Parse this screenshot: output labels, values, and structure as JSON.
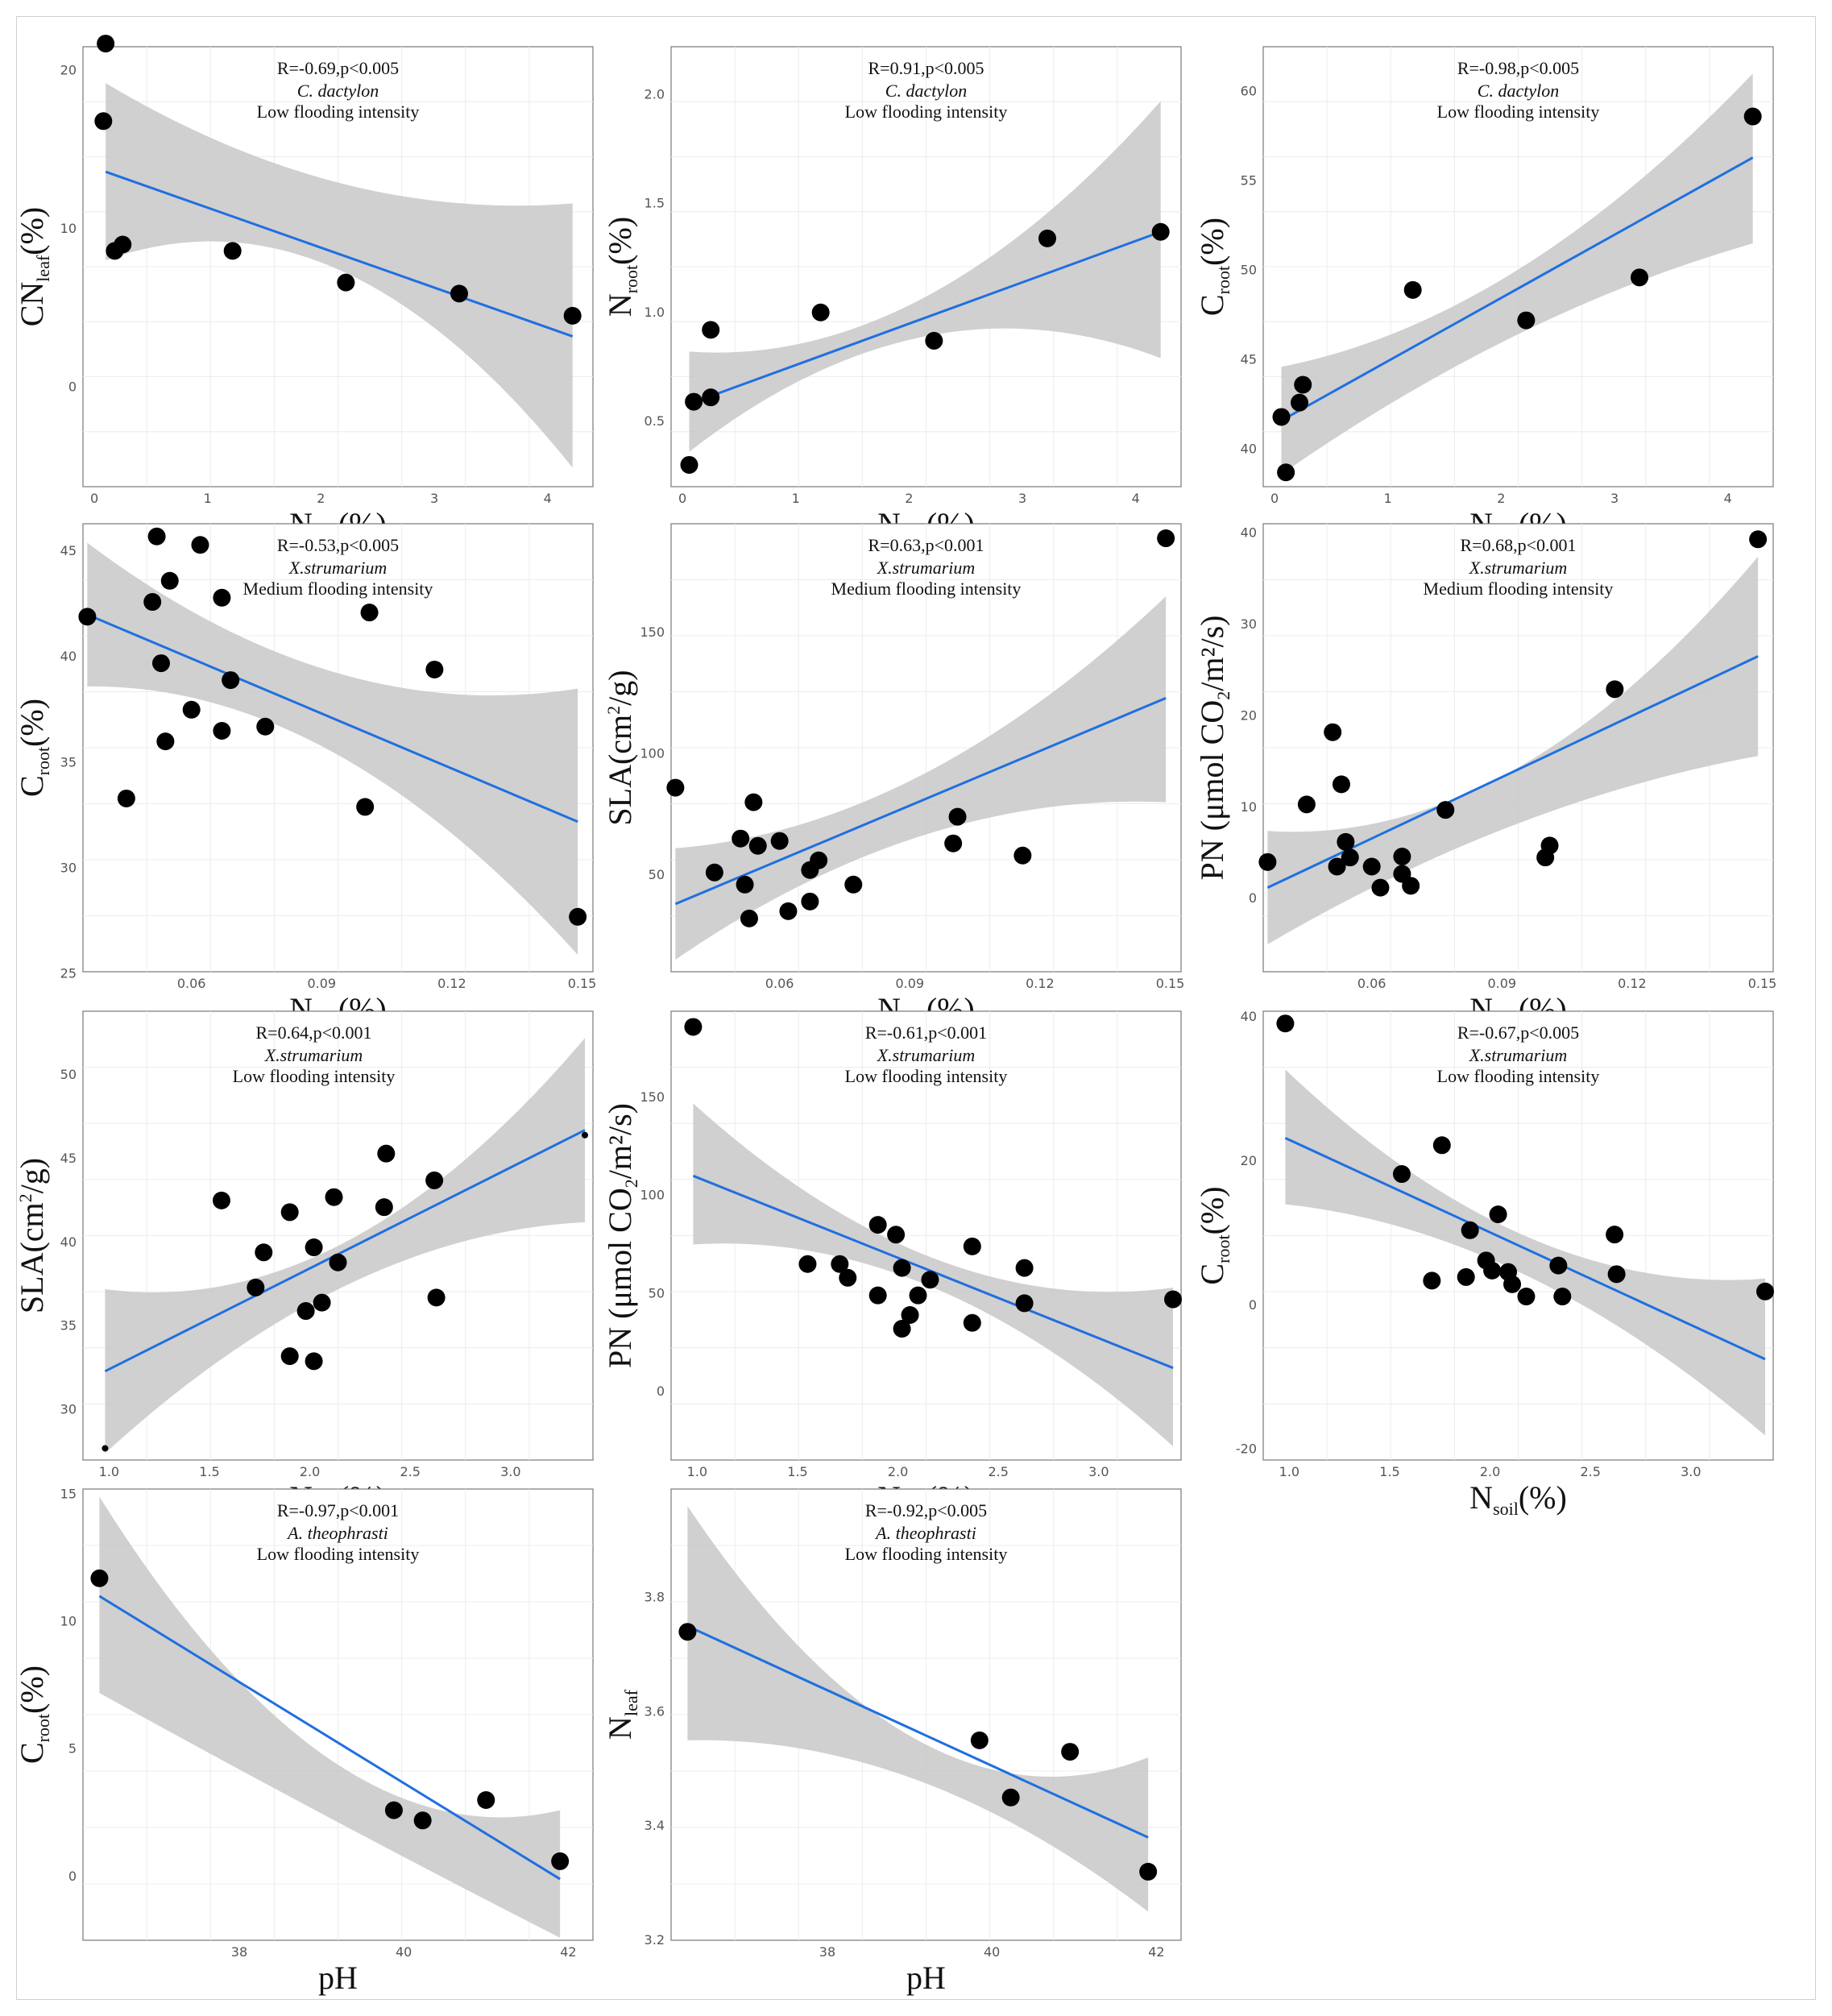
{
  "colors": {
    "line": "#1f6fe0",
    "band": "#c8c8c8",
    "points": "#000000",
    "grid": "#ececec"
  },
  "chart_data": [
    {
      "id": "p1",
      "type": "scatter",
      "ylabel": "CN",
      "ylabel_sub": "leaf",
      "ylabel_unit": "(%)",
      "xlabel": "N",
      "xlabel_sub": "soil",
      "xlabel_unit": "(%)",
      "stat": "R=-0.69,p<0.005",
      "species": "C. dactylon",
      "intensity": "Low flooding intensity",
      "xlim": [
        -0.1,
        4.4
      ],
      "ylim": [
        -6.3,
        21.5
      ],
      "xticks": [
        "0",
        "1",
        "2",
        "3",
        "4"
      ],
      "yticks": [
        "0",
        "10",
        "20"
      ],
      "x": [
        0.1,
        0.08,
        0.18,
        0.25,
        1.22,
        2.22,
        3.22,
        4.22
      ],
      "y": [
        21.7,
        16.8,
        8.6,
        9.0,
        8.6,
        6.6,
        5.9,
        4.5
      ],
      "fit": {
        "x0": 0.1,
        "y0": 13.6,
        "x1": 4.22,
        "y1": 3.2
      },
      "band": {
        "upper0": 19.2,
        "upperMid": 12.9,
        "upper1": 11.6,
        "lower0": 8.0,
        "lowerMid": 7.4,
        "lower1": -5.1
      }
    },
    {
      "id": "p2",
      "type": "scatter",
      "ylabel": "N",
      "ylabel_sub": "root",
      "ylabel_unit": "(%)",
      "xlabel": "N",
      "xlabel_sub": "soil",
      "xlabel_unit": "(%)",
      "stat": "R=0.91,p<0.005",
      "species": "C. dactylon",
      "intensity": "Low flooding intensity",
      "xlim": [
        -0.1,
        4.4
      ],
      "ylim": [
        0.2,
        2.22
      ],
      "xticks": [
        "0",
        "1",
        "2",
        "3",
        "4"
      ],
      "yticks": [
        "0.5",
        "1.0",
        "1.5",
        "2.0"
      ],
      "x": [
        0.06,
        0.1,
        0.25,
        0.25,
        1.22,
        2.22,
        3.22,
        4.22
      ],
      "y": [
        0.3,
        0.59,
        0.61,
        0.92,
        1.0,
        0.87,
        1.34,
        1.37
      ],
      "fit": {
        "x0": 0.06,
        "y0": 0.58,
        "x1": 4.22,
        "y1": 1.37
      },
      "band": {
        "upper0": 0.82,
        "upperMid": 1.07,
        "upper1": 1.97,
        "lower0": 0.36,
        "lowerMid": 0.89,
        "lower1": 0.79
      }
    },
    {
      "id": "p3",
      "type": "scatter",
      "ylabel": "C",
      "ylabel_sub": "root",
      "ylabel_unit": "(%)",
      "xlabel": "N",
      "xlabel_sub": "soil",
      "xlabel_unit": "(%)",
      "stat": "R=-0.98,p<0.005",
      "species": "C. dactylon",
      "intensity": "Low flooding intensity",
      "xlim": [
        -0.1,
        4.4
      ],
      "ylim": [
        37.9,
        62.5
      ],
      "xticks": [
        "0",
        "1",
        "2",
        "3",
        "4"
      ],
      "yticks": [
        "40",
        "45",
        "50",
        "55",
        "60"
      ],
      "x": [
        0.06,
        0.1,
        0.22,
        0.25,
        1.22,
        2.22,
        3.22,
        4.22
      ],
      "y": [
        41.8,
        38.7,
        42.6,
        43.6,
        48.9,
        47.2,
        49.6,
        58.6
      ],
      "fit": {
        "x0": 0.06,
        "y0": 41.6,
        "x1": 4.22,
        "y1": 56.3
      },
      "band": {
        "upper0": 44.6,
        "upperMid": 50.0,
        "upper1": 61.0,
        "lower0": 38.6,
        "lowerMid": 46.4,
        "lower1": 51.5
      }
    },
    {
      "id": "p4",
      "type": "scatter",
      "ylabel": "C",
      "ylabel_sub": "root",
      "ylabel_unit": "(%)",
      "xlabel": "N",
      "xlabel_sub": "soil",
      "xlabel_unit": "(%)",
      "stat": "R=-0.53,p<0.005",
      "species": "X.strumarium",
      "intensity": "Medium flooding intensity",
      "xlim": [
        0.035,
        0.1525
      ],
      "ylim": [
        25.1,
        46.3
      ],
      "xticks": [
        "0.06",
        "0.09",
        "0.12",
        "0.15"
      ],
      "yticks": [
        "25",
        "30",
        "35",
        "40",
        "45"
      ],
      "x": [
        0.036,
        0.045,
        0.051,
        0.052,
        0.053,
        0.054,
        0.055,
        0.06,
        0.062,
        0.067,
        0.067,
        0.069,
        0.077,
        0.1,
        0.101,
        0.116,
        0.149
      ],
      "y": [
        41.9,
        33.3,
        42.6,
        45.7,
        39.7,
        36.0,
        43.6,
        37.5,
        45.3,
        36.5,
        42.8,
        38.9,
        36.7,
        32.9,
        42.1,
        39.4,
        27.7
      ],
      "fit": {
        "x0": 0.036,
        "y0": 42.0,
        "x1": 0.149,
        "y1": 32.2
      },
      "band": {
        "upper0": 45.4,
        "upperMid": 39.3,
        "upper1": 38.5,
        "lower0": 38.6,
        "lowerMid": 35.5,
        "lower1": 25.9
      }
    },
    {
      "id": "p5",
      "type": "scatter",
      "ylabel": "SLA(cm",
      "ylabel_sup": "2",
      "ylabel_unit": "/g)",
      "xlabel": "N",
      "xlabel_sub": "soil",
      "xlabel_unit": "(%)",
      "stat": "R=0.63,p<0.001",
      "species": "X.strumarium",
      "intensity": "Medium flooding intensity",
      "xlim": [
        0.035,
        0.1525
      ],
      "ylim": [
        10,
        195
      ],
      "xticks": [
        "0.06",
        "0.09",
        "0.12",
        "0.15"
      ],
      "yticks": [
        "50",
        "100",
        "150"
      ],
      "x": [
        0.036,
        0.045,
        0.051,
        0.052,
        0.053,
        0.054,
        0.055,
        0.06,
        0.062,
        0.067,
        0.067,
        0.069,
        0.077,
        0.1,
        0.101,
        0.116,
        0.149
      ],
      "y": [
        86,
        51,
        65,
        46,
        32,
        80,
        62,
        64,
        35,
        52,
        39,
        56,
        46,
        63,
        74,
        58,
        189
      ],
      "fit": {
        "x0": 0.036,
        "y0": 38,
        "x1": 0.149,
        "y1": 123
      },
      "band": {
        "upper0": 61,
        "upperMid": 91,
        "upper1": 165,
        "lower0": 15,
        "lowerMid": 66,
        "lower1": 80
      }
    },
    {
      "id": "p6",
      "type": "scatter",
      "ylabel": "PN (μmol CO",
      "ylabel_sub": "2",
      "ylabel_unit": "/m²/s)",
      "xlabel": "N",
      "xlabel_sub": "soil",
      "xlabel_unit": "(%)",
      "stat": "R=0.68,p<0.001",
      "species": "X.strumarium",
      "intensity": "Medium flooding intensity",
      "xlim": [
        0.035,
        0.1525
      ],
      "ylim": [
        -8,
        41
      ],
      "xticks": [
        "0.06",
        "0.09",
        "0.12",
        "0.15"
      ],
      "yticks": [
        "0",
        "10",
        "20",
        "30",
        "40"
      ],
      "x": [
        0.036,
        0.045,
        0.051,
        0.052,
        0.053,
        0.054,
        0.055,
        0.06,
        0.062,
        0.067,
        0.067,
        0.069,
        0.077,
        0.1,
        0.101,
        0.116,
        0.149
      ],
      "y": [
        4.0,
        10.3,
        18.2,
        3.5,
        12.5,
        6.2,
        4.5,
        3.5,
        1.2,
        2.7,
        4.6,
        1.4,
        9.7,
        4.5,
        5.8,
        22.9,
        39.3
      ],
      "fit": {
        "x0": 0.036,
        "y0": 1.2,
        "x1": 0.149,
        "y1": 26.5
      },
      "band": {
        "upper0": 7.4,
        "upperMid": 14.0,
        "upper1": 37.4,
        "lower0": -5.0,
        "lowerMid": 8.0,
        "lower1": 15.6
      }
    },
    {
      "id": "p7",
      "type": "scatter",
      "ylabel": "SLA(cm",
      "ylabel_sup": "2",
      "ylabel_unit": "/g)",
      "xlabel": "N",
      "xlabel_sub": "soil",
      "xlabel_unit": "(%)",
      "stat": "R=0.64,p<0.001",
      "species": "X.strumarium",
      "intensity": "Low flooding intensity",
      "xlim": [
        0.87,
        3.41
      ],
      "ylim": [
        27.0,
        53.8
      ],
      "xticks": [
        "1.0",
        "1.5",
        "2.0",
        "2.5",
        "3.0"
      ],
      "yticks": [
        "30",
        "35",
        "40",
        "45",
        "50"
      ],
      "x": [
        0.98,
        1.56,
        1.73,
        1.77,
        1.9,
        1.9,
        1.98,
        2.02,
        2.02,
        2.06,
        2.12,
        2.14,
        2.37,
        2.38,
        2.62,
        2.63,
        3.37
      ],
      "y": [
        27.7,
        42.5,
        37.3,
        39.4,
        41.8,
        33.2,
        35.9,
        39.7,
        32.9,
        36.4,
        42.7,
        38.8,
        42.1,
        45.3,
        43.7,
        36.7,
        46.4
      ],
      "fit": {
        "x0": 0.98,
        "y0": 32.3,
        "x1": 3.37,
        "y1": 46.7
      },
      "band": {
        "upper0": 37.2,
        "upperMid": 40.0,
        "upper1": 52.2,
        "lower0": 27.4,
        "lowerMid": 37.4,
        "lower1": 41.2
      }
    },
    {
      "id": "p8",
      "type": "scatter",
      "ylabel": "PN (μmol CO",
      "ylabel_sub": "2",
      "ylabel_unit": "/m²/s)",
      "xlabel": "N",
      "xlabel_sub": "soil",
      "xlabel_unit": "(%)",
      "stat": "R=-0.61,p<0.001",
      "species": "X.strumarium",
      "intensity": "Low flooding intensity",
      "xlim": [
        0.87,
        3.41
      ],
      "ylim": [
        -35,
        194
      ],
      "xticks": [
        "1.0",
        "1.5",
        "2.0",
        "2.5",
        "3.0"
      ],
      "yticks": [
        "0",
        "50",
        "100",
        "150"
      ],
      "x": [
        0.98,
        1.55,
        1.71,
        1.75,
        1.9,
        1.9,
        1.99,
        2.02,
        2.02,
        2.06,
        2.1,
        2.16,
        2.37,
        2.37,
        2.63,
        2.63,
        3.37
      ],
      "y": [
        186,
        65,
        65,
        58,
        85,
        49,
        80,
        32,
        63,
        39,
        49,
        57,
        74,
        35,
        63,
        45,
        47
      ],
      "fit": {
        "x0": 0.98,
        "y0": 110,
        "x1": 3.37,
        "y1": 12
      },
      "band": {
        "upper0": 147,
        "upperMid": 68,
        "upper1": 53,
        "lower0": 75,
        "lowerMid": 53,
        "lower1": -28
      }
    },
    {
      "id": "p9",
      "type": "scatter",
      "ylabel": "C",
      "ylabel_sub": "root",
      "ylabel_unit": "(%)",
      "xlabel": "N",
      "xlabel_sub": "soil",
      "xlabel_unit": "(%)",
      "stat": "R=-0.67,p<0.005",
      "species": "X.strumarium",
      "intensity": "Low flooding intensity",
      "xlim": [
        0.87,
        3.41
      ],
      "ylim": [
        -21.5,
        40.8
      ],
      "xticks": [
        "1.0",
        "1.5",
        "2.0",
        "2.5",
        "3.0"
      ],
      "yticks": [
        "-20",
        "0",
        "20",
        "40"
      ],
      "x": [
        0.98,
        1.56,
        1.71,
        1.76,
        1.88,
        1.9,
        1.98,
        2.01,
        2.04,
        2.09,
        2.11,
        2.18,
        2.34,
        2.36,
        2.62,
        2.63,
        3.37
      ],
      "y": [
        39.1,
        18.2,
        3.4,
        22.2,
        3.9,
        10.4,
        6.2,
        4.8,
        12.6,
        4.6,
        2.9,
        1.2,
        5.5,
        1.2,
        9.8,
        4.3,
        1.9
      ],
      "fit": {
        "x0": 0.98,
        "y0": 23.2,
        "x1": 3.37,
        "y1": -7.5
      },
      "band": {
        "upper0": 32.7,
        "upperMid": 9.6,
        "upper1": 3.7,
        "lower0": 14.0,
        "lowerMid": 4.2,
        "lower1": -18.1
      }
    },
    {
      "id": "p10",
      "type": "scatter",
      "ylabel": "C",
      "ylabel_sub": "root",
      "ylabel_unit": "(%)",
      "xlabel": "pH",
      "xlabel_sub": "",
      "xlabel_unit": "",
      "stat": "R=-0.97,p<0.001",
      "species": "A. theophrasti",
      "intensity": "Low flooding intensity",
      "xlim": [
        36.1,
        42.3
      ],
      "ylim": [
        -2.5,
        15.2
      ],
      "xticks": [
        "38",
        "40",
        "42"
      ],
      "yticks": [
        "0",
        "5",
        "10",
        "15"
      ],
      "x": [
        36.3,
        39.88,
        40.23,
        41.0,
        41.9
      ],
      "y": [
        11.7,
        2.6,
        2.2,
        3.0,
        0.6
      ],
      "fit": {
        "x0": 36.3,
        "y0": 11.0,
        "x1": 41.9,
        "y1": -0.1
      },
      "band": {
        "upper0": 14.9,
        "upperMid": 4.6,
        "upper1": 2.6,
        "lower0": 7.2,
        "lowerMid": 2.3,
        "lower1": -2.4
      }
    },
    {
      "id": "p11",
      "type": "scatter",
      "ylabel": "N",
      "ylabel_sub": "leaf",
      "ylabel_unit": "",
      "xlabel": "pH",
      "xlabel_sub": "",
      "xlabel_unit": "",
      "stat": "R=-0.92,p<0.005",
      "species": "A. theophrasti",
      "intensity": "Low flooding intensity",
      "xlim": [
        36.1,
        42.3
      ],
      "ylim": [
        3.2,
        3.99
      ],
      "xticks": [
        "38",
        "40",
        "42"
      ],
      "yticks": [
        "3.2",
        "3.4",
        "3.6",
        "3.8"
      ],
      "x": [
        36.3,
        39.85,
        40.23,
        40.95,
        41.9
      ],
      "y": [
        3.74,
        3.55,
        3.45,
        3.53,
        3.32
      ],
      "fit": {
        "x0": 36.3,
        "y0": 3.75,
        "x1": 41.9,
        "y1": 3.38
      },
      "band": {
        "upper0": 3.96,
        "upperMid": 3.55,
        "upper1": 3.52,
        "lower0": 3.55,
        "lowerMid": 3.48,
        "lower1": 3.25
      }
    }
  ]
}
